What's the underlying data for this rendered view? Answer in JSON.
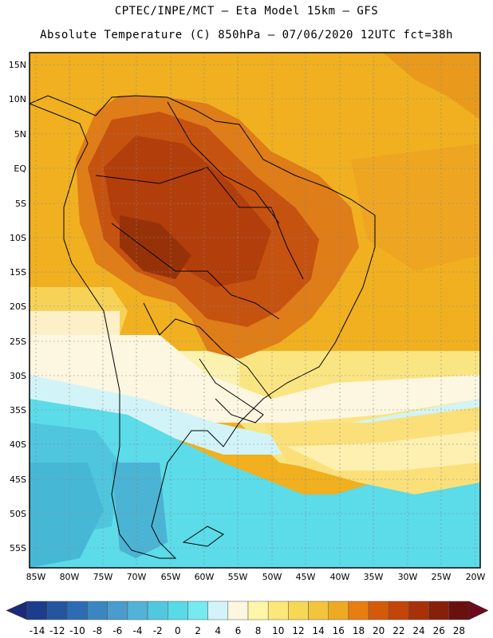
{
  "header": {
    "title_line1": "CPTEC/INPE/MCT –  Eta Model 15km – GFS",
    "title_line2": "Absolute Temperature (C) 850hPa – 07/06/2020 12UTC fct=38h"
  },
  "map": {
    "lat_labels": [
      "15N",
      "10N",
      "5N",
      "EQ",
      "5S",
      "10S",
      "15S",
      "20S",
      "25S",
      "30S",
      "35S",
      "40S",
      "45S",
      "50S",
      "55S"
    ],
    "lon_labels": [
      "85W",
      "80W",
      "75W",
      "70W",
      "65W",
      "60W",
      "55W",
      "50W",
      "45W",
      "40W",
      "35W",
      "30W",
      "25W",
      "20W"
    ]
  },
  "colorbar": {
    "labels": [
      "-14",
      "-12",
      "-10",
      "-8",
      "-6",
      "-4",
      "-2",
      "0",
      "2",
      "4",
      "6",
      "8",
      "10",
      "12",
      "14",
      "16",
      "18",
      "20",
      "22",
      "24",
      "26",
      "28"
    ],
    "colors": [
      "#1c3c8c",
      "#24559f",
      "#2d6cb2",
      "#3b86c1",
      "#4a9ccc",
      "#52b2d8",
      "#51c8e0",
      "#5ad9e8",
      "#75eaf0",
      "#d2f4f8",
      "#fdf6e0",
      "#fef6a8",
      "#fbe878",
      "#f6d855",
      "#f2c53c",
      "#eeaa22",
      "#e87e10",
      "#d45a0a",
      "#c34509",
      "#a83207",
      "#86200a",
      "#6a1010"
    ],
    "under_color": "#1b2a78",
    "over_color": "#6e0a1e"
  }
}
